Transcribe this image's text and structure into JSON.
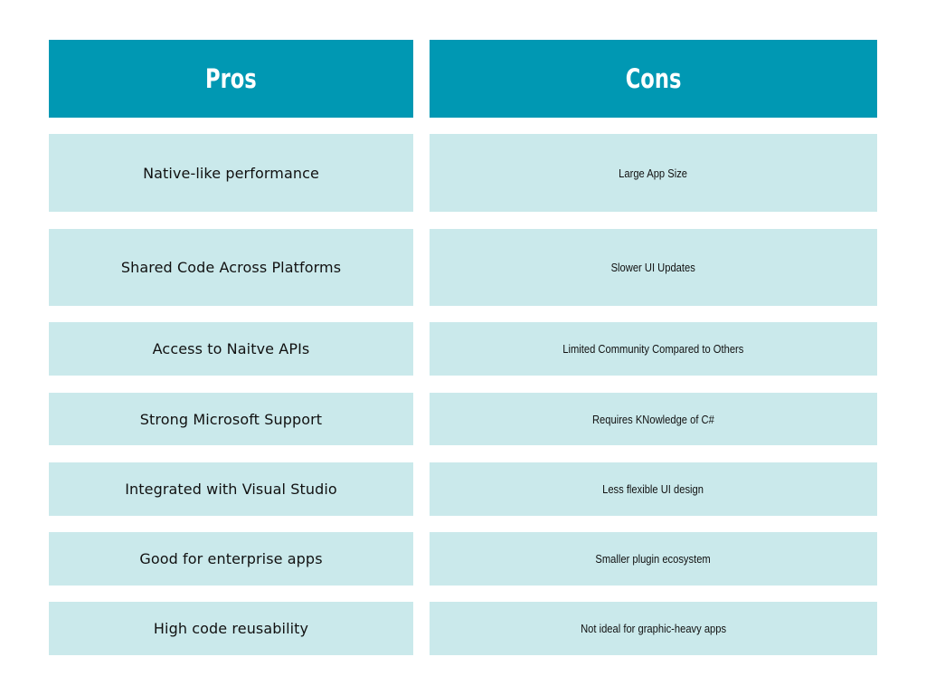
{
  "table": {
    "pros_header": "Pros",
    "cons_header": "Cons",
    "rows": [
      {
        "pro": "Native-like performance",
        "con": "Large App Size"
      },
      {
        "pro": "Shared Code Across Platforms",
        "con": "Slower UI Updates"
      },
      {
        "pro": "Access to Naitve APIs",
        "con": "Limited Community Compared to Others"
      },
      {
        "pro": "Strong Microsoft Support",
        "con": "Requires KNowledge of C#"
      },
      {
        "pro": "Integrated with Visual Studio",
        "con": "Less flexible UI design"
      },
      {
        "pro": "Good for enterprise apps",
        "con": "Smaller plugin ecosystem"
      },
      {
        "pro": "High code reusability",
        "con": "Not ideal for graphic-heavy apps"
      }
    ]
  },
  "colors": {
    "header_bg": "#0098b3",
    "cell_bg": "#cae9eb",
    "header_text": "#ffffff",
    "cell_text": "#111111"
  }
}
